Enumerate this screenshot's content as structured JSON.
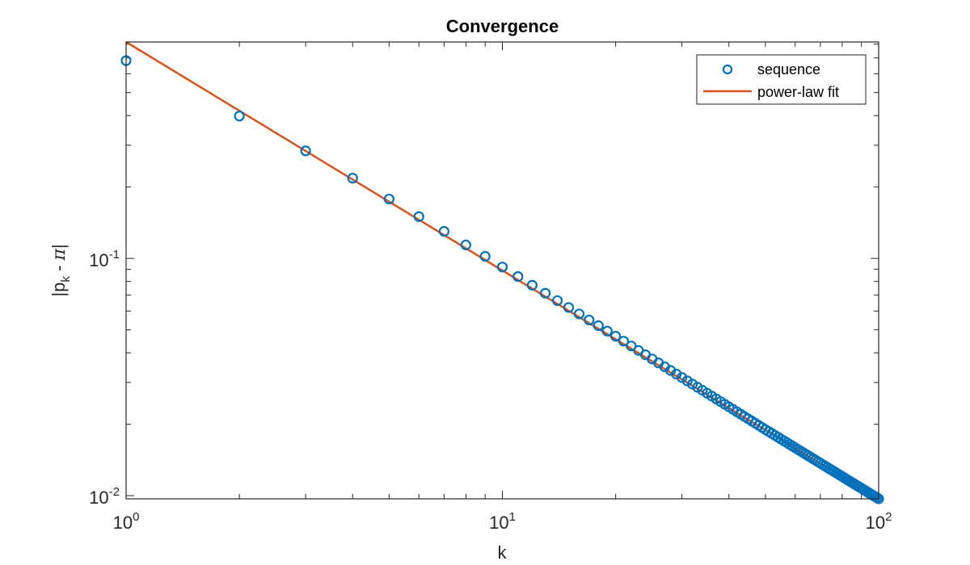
{
  "chart_data": {
    "type": "scatter",
    "title": "Convergence",
    "xlabel": "k",
    "ylabel": "|p_k - π|",
    "xscale": "log",
    "yscale": "log",
    "xlim": [
      1,
      100
    ],
    "ylim": [
      0.0097,
      0.817
    ],
    "xticks": [
      {
        "value": 1,
        "label": "10^0"
      },
      {
        "value": 10,
        "label": "10^1"
      },
      {
        "value": 100,
        "label": "10^2"
      }
    ],
    "yticks": [
      {
        "value": 0.01,
        "label": "10^-2"
      },
      {
        "value": 0.1,
        "label": "10^-1"
      }
    ],
    "grid": false,
    "legend": {
      "position": "northeast",
      "entries": [
        "sequence",
        "power-law fit"
      ]
    },
    "series": [
      {
        "name": "sequence",
        "style": "markers",
        "marker": "circle",
        "color": "#0072BD",
        "x_range": [
          1,
          100
        ],
        "x_step": 1,
        "sample_points": [
          {
            "k": 1,
            "value": 0.682
          },
          {
            "k": 2,
            "value": 0.398
          },
          {
            "k": 3,
            "value": 0.284
          },
          {
            "k": 4,
            "value": 0.218
          },
          {
            "k": 5,
            "value": 0.178
          },
          {
            "k": 6,
            "value": 0.15
          },
          {
            "k": 7,
            "value": 0.13
          },
          {
            "k": 8,
            "value": 0.114
          },
          {
            "k": 9,
            "value": 0.102
          },
          {
            "k": 10,
            "value": 0.092
          },
          {
            "k": 20,
            "value": 0.047
          },
          {
            "k": 50,
            "value": 0.019
          },
          {
            "k": 100,
            "value": 0.0097
          }
        ]
      },
      {
        "name": "power-law fit",
        "style": "line",
        "color": "#D95319",
        "model": "C * k^p",
        "C": 0.817,
        "p": -0.963
      }
    ]
  }
}
